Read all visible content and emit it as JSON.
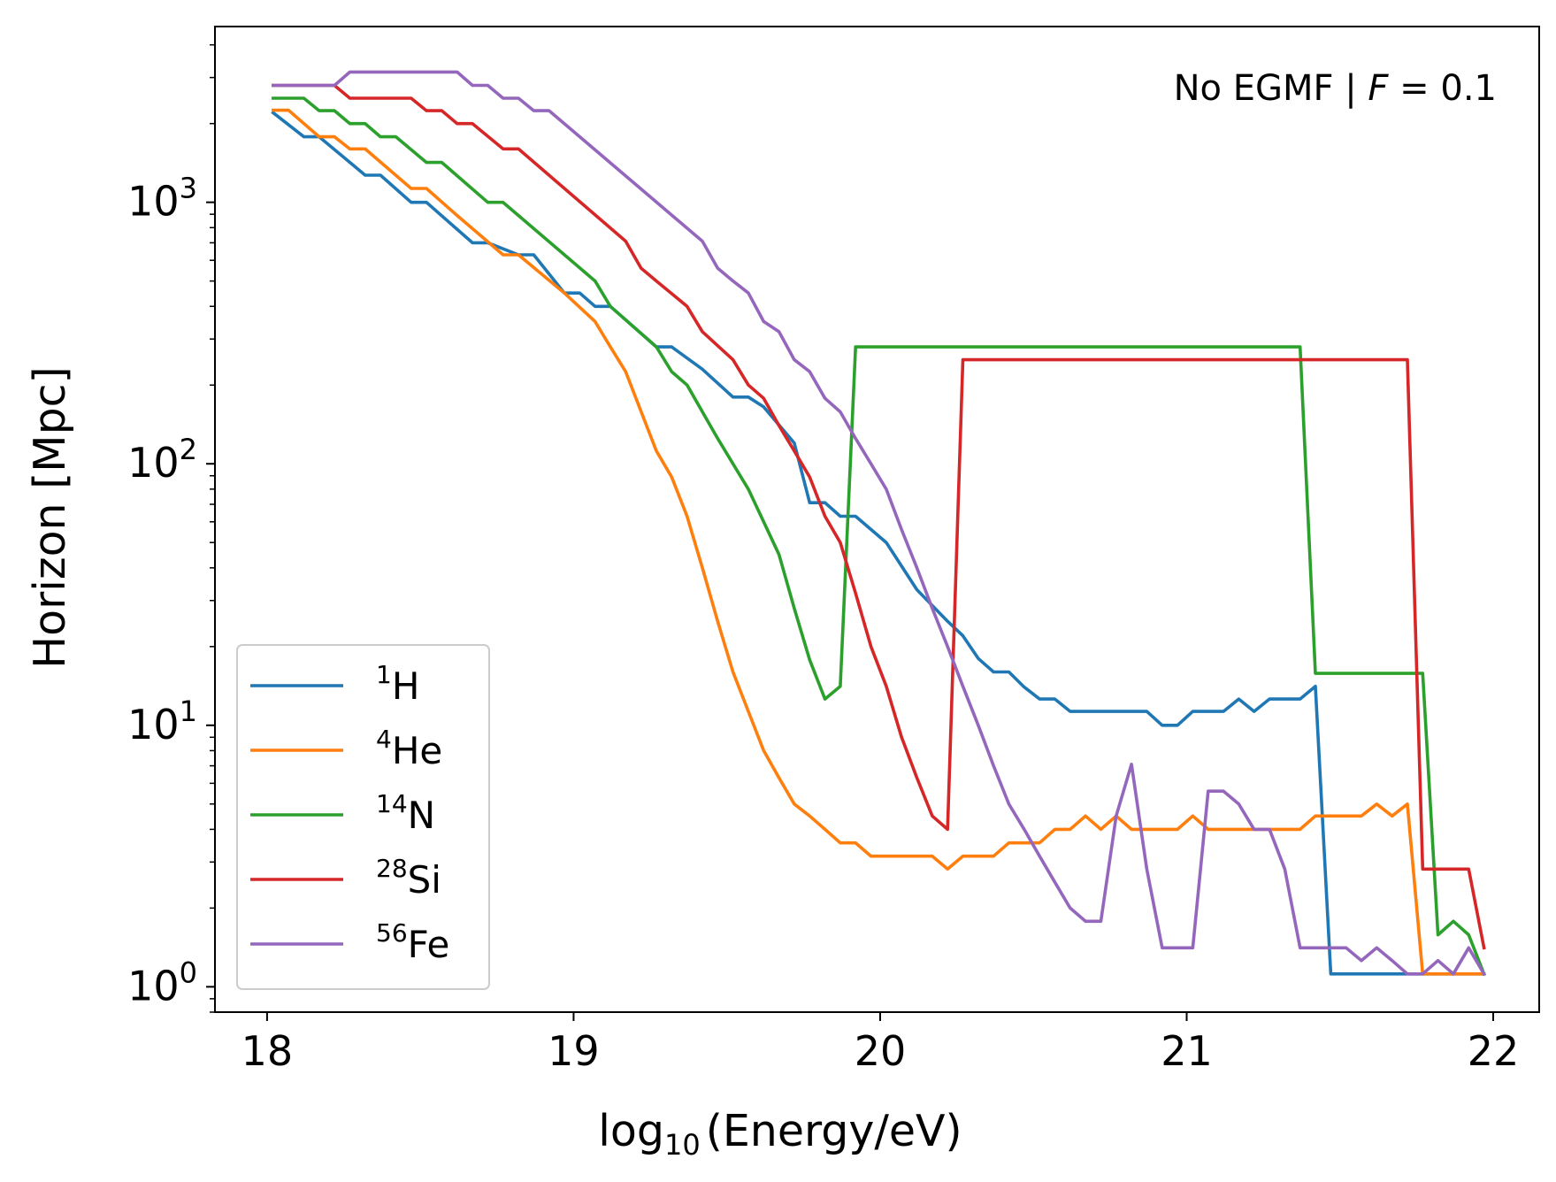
{
  "chart_data": {
    "type": "line",
    "xlabel": "log₁₀(Energy/eV)",
    "xlabel_parts": {
      "base": "log",
      "sub": "10",
      "rest": "(Energy/eV)"
    },
    "ylabel": "Horizon [Mpc]",
    "annotation": {
      "text_prefix": "No EGMF | ",
      "var": "F",
      "text_suffix": " = 0.1"
    },
    "xlim": [
      17.83,
      22.15
    ],
    "ylim": [
      0.8,
      4700
    ],
    "yscale": "log",
    "grid": false,
    "legend_placement": "lower-left",
    "x_ticks": [
      {
        "value": 18,
        "label": "18"
      },
      {
        "value": 19,
        "label": "19"
      },
      {
        "value": 20,
        "label": "20"
      },
      {
        "value": 21,
        "label": "21"
      },
      {
        "value": 22,
        "label": "22"
      }
    ],
    "y_ticks": [
      {
        "value": 1,
        "base": "10",
        "exp": "0"
      },
      {
        "value": 10,
        "base": "10",
        "exp": "1"
      },
      {
        "value": 100,
        "base": "10",
        "exp": "2"
      },
      {
        "value": 1000,
        "base": "10",
        "exp": "3"
      }
    ],
    "series": [
      {
        "name": "¹H",
        "name_sup": "1",
        "name_base": "H",
        "color": "#1f77b4",
        "points": [
          [
            18.02,
            2200
          ],
          [
            18.12,
            1780
          ],
          [
            18.17,
            1780
          ],
          [
            18.32,
            1270
          ],
          [
            18.37,
            1270
          ],
          [
            18.47,
            1000
          ],
          [
            18.52,
            1000
          ],
          [
            18.67,
            700
          ],
          [
            18.72,
            700
          ],
          [
            18.82,
            630
          ],
          [
            18.87,
            630
          ],
          [
            18.97,
            450
          ],
          [
            19.02,
            450
          ],
          [
            19.07,
            400
          ],
          [
            19.12,
            400
          ],
          [
            19.27,
            280
          ],
          [
            19.32,
            280
          ],
          [
            19.42,
            230
          ],
          [
            19.52,
            180
          ],
          [
            19.57,
            180
          ],
          [
            19.62,
            165
          ],
          [
            19.72,
            120
          ],
          [
            19.77,
            71
          ],
          [
            19.82,
            71
          ],
          [
            19.87,
            63
          ],
          [
            19.92,
            63
          ],
          [
            20.02,
            50
          ],
          [
            20.12,
            33
          ],
          [
            20.22,
            25
          ],
          [
            20.27,
            22
          ],
          [
            20.32,
            18
          ],
          [
            20.37,
            16
          ],
          [
            20.42,
            16
          ],
          [
            20.47,
            14
          ],
          [
            20.52,
            12.6
          ],
          [
            20.57,
            12.6
          ],
          [
            20.62,
            11.3
          ],
          [
            20.72,
            11.3
          ],
          [
            20.87,
            11.3
          ],
          [
            20.92,
            10
          ],
          [
            20.97,
            10
          ],
          [
            21.02,
            11.3
          ],
          [
            21.12,
            11.3
          ],
          [
            21.17,
            12.6
          ],
          [
            21.22,
            11.3
          ],
          [
            21.27,
            12.6
          ],
          [
            21.37,
            12.6
          ],
          [
            21.42,
            14.1
          ],
          [
            21.47,
            1.12
          ],
          [
            21.92,
            1.12
          ],
          [
            21.97,
            1.12
          ]
        ]
      },
      {
        "name": "⁴He",
        "name_sup": "4",
        "name_base": "He",
        "color": "#ff7f0e",
        "points": [
          [
            18.02,
            2250
          ],
          [
            18.07,
            2250
          ],
          [
            18.17,
            1780
          ],
          [
            18.22,
            1780
          ],
          [
            18.27,
            1600
          ],
          [
            18.32,
            1600
          ],
          [
            18.47,
            1130
          ],
          [
            18.52,
            1130
          ],
          [
            18.62,
            890
          ],
          [
            18.77,
            630
          ],
          [
            18.82,
            630
          ],
          [
            18.97,
            450
          ],
          [
            19.07,
            350
          ],
          [
            19.12,
            280
          ],
          [
            19.17,
            225
          ],
          [
            19.27,
            112
          ],
          [
            19.32,
            89
          ],
          [
            19.37,
            63
          ],
          [
            19.42,
            40
          ],
          [
            19.47,
            25
          ],
          [
            19.52,
            16
          ],
          [
            19.57,
            11.3
          ],
          [
            19.62,
            8
          ],
          [
            19.67,
            6.3
          ],
          [
            19.72,
            5
          ],
          [
            19.77,
            4.5
          ],
          [
            19.82,
            4
          ],
          [
            19.87,
            3.55
          ],
          [
            19.92,
            3.55
          ],
          [
            19.97,
            3.16
          ],
          [
            20.17,
            3.16
          ],
          [
            20.22,
            2.82
          ],
          [
            20.27,
            3.16
          ],
          [
            20.37,
            3.16
          ],
          [
            20.42,
            3.55
          ],
          [
            20.52,
            3.55
          ],
          [
            20.57,
            4
          ],
          [
            20.62,
            4
          ],
          [
            20.67,
            4.5
          ],
          [
            20.72,
            4
          ],
          [
            20.77,
            4.5
          ],
          [
            20.82,
            4
          ],
          [
            20.97,
            4
          ],
          [
            21.02,
            4.5
          ],
          [
            21.07,
            4
          ],
          [
            21.37,
            4
          ],
          [
            21.42,
            4.5
          ],
          [
            21.57,
            4.5
          ],
          [
            21.62,
            5
          ],
          [
            21.67,
            4.5
          ],
          [
            21.72,
            5
          ],
          [
            21.77,
            1.12
          ],
          [
            21.97,
            1.12
          ]
        ]
      },
      {
        "name": "¹⁴N",
        "name_sup": "14",
        "name_base": "N",
        "color": "#2ca02c",
        "points": [
          [
            18.02,
            2500
          ],
          [
            18.12,
            2500
          ],
          [
            18.17,
            2240
          ],
          [
            18.22,
            2240
          ],
          [
            18.27,
            2000
          ],
          [
            18.32,
            2000
          ],
          [
            18.37,
            1780
          ],
          [
            18.42,
            1780
          ],
          [
            18.52,
            1420
          ],
          [
            18.57,
            1420
          ],
          [
            18.72,
            1000
          ],
          [
            18.77,
            1000
          ],
          [
            19.07,
            500
          ],
          [
            19.12,
            400
          ],
          [
            19.27,
            280
          ],
          [
            19.32,
            225
          ],
          [
            19.37,
            200
          ],
          [
            19.47,
            125
          ],
          [
            19.57,
            80
          ],
          [
            19.67,
            45
          ],
          [
            19.72,
            28
          ],
          [
            19.77,
            17.8
          ],
          [
            19.82,
            12.6
          ],
          [
            19.87,
            14.1
          ],
          [
            19.92,
            280
          ],
          [
            21.37,
            280
          ],
          [
            21.42,
            15.8
          ],
          [
            21.77,
            15.8
          ],
          [
            21.82,
            1.58
          ],
          [
            21.87,
            1.78
          ],
          [
            21.92,
            1.58
          ],
          [
            21.97,
            1.12
          ]
        ]
      },
      {
        "name": "²⁸Si",
        "name_sup": "28",
        "name_base": "Si",
        "color": "#d62728",
        "points": [
          [
            18.02,
            2800
          ],
          [
            18.22,
            2800
          ],
          [
            18.27,
            2500
          ],
          [
            18.47,
            2500
          ],
          [
            18.52,
            2240
          ],
          [
            18.57,
            2240
          ],
          [
            18.62,
            2000
          ],
          [
            18.67,
            2000
          ],
          [
            18.77,
            1600
          ],
          [
            18.82,
            1600
          ],
          [
            19.17,
            710
          ],
          [
            19.22,
            560
          ],
          [
            19.27,
            500
          ],
          [
            19.37,
            400
          ],
          [
            19.42,
            320
          ],
          [
            19.52,
            250
          ],
          [
            19.57,
            200
          ],
          [
            19.62,
            178
          ],
          [
            19.67,
            140
          ],
          [
            19.72,
            112
          ],
          [
            19.77,
            89
          ],
          [
            19.82,
            63
          ],
          [
            19.87,
            50
          ],
          [
            19.92,
            32
          ],
          [
            19.97,
            20
          ],
          [
            20.02,
            14.1
          ],
          [
            20.07,
            9
          ],
          [
            20.12,
            6.3
          ],
          [
            20.17,
            4.5
          ],
          [
            20.22,
            4
          ],
          [
            20.27,
            250
          ],
          [
            21.72,
            250
          ],
          [
            21.77,
            2.82
          ],
          [
            21.92,
            2.82
          ],
          [
            21.97,
            1.41
          ]
        ]
      },
      {
        "name": "⁵⁶Fe",
        "name_sup": "56",
        "name_base": "Fe",
        "color": "#9467bd",
        "points": [
          [
            18.02,
            2800
          ],
          [
            18.22,
            2800
          ],
          [
            18.27,
            3150
          ],
          [
            18.62,
            3150
          ],
          [
            18.67,
            2800
          ],
          [
            18.72,
            2800
          ],
          [
            18.77,
            2500
          ],
          [
            18.82,
            2500
          ],
          [
            18.87,
            2240
          ],
          [
            18.92,
            2240
          ],
          [
            19.42,
            710
          ],
          [
            19.47,
            560
          ],
          [
            19.52,
            500
          ],
          [
            19.57,
            450
          ],
          [
            19.62,
            350
          ],
          [
            19.67,
            320
          ],
          [
            19.72,
            250
          ],
          [
            19.77,
            225
          ],
          [
            19.82,
            178
          ],
          [
            19.87,
            158
          ],
          [
            19.92,
            125
          ],
          [
            19.97,
            100
          ],
          [
            20.02,
            80
          ],
          [
            20.07,
            56
          ],
          [
            20.12,
            40
          ],
          [
            20.17,
            28
          ],
          [
            20.22,
            20
          ],
          [
            20.27,
            14.1
          ],
          [
            20.32,
            10
          ],
          [
            20.37,
            7
          ],
          [
            20.42,
            5
          ],
          [
            20.47,
            4
          ],
          [
            20.52,
            3.16
          ],
          [
            20.57,
            2.51
          ],
          [
            20.62,
            2
          ],
          [
            20.67,
            1.78
          ],
          [
            20.72,
            1.78
          ],
          [
            20.77,
            4.5
          ],
          [
            20.82,
            7.1
          ],
          [
            20.87,
            2.82
          ],
          [
            20.92,
            1.41
          ],
          [
            20.97,
            1.41
          ],
          [
            21.02,
            1.41
          ],
          [
            21.07,
            5.6
          ],
          [
            21.12,
            5.6
          ],
          [
            21.17,
            5
          ],
          [
            21.22,
            4
          ],
          [
            21.27,
            4
          ],
          [
            21.32,
            2.82
          ],
          [
            21.37,
            1.41
          ],
          [
            21.47,
            1.41
          ],
          [
            21.52,
            1.41
          ],
          [
            21.57,
            1.26
          ],
          [
            21.62,
            1.41
          ],
          [
            21.67,
            1.26
          ],
          [
            21.72,
            1.12
          ],
          [
            21.77,
            1.12
          ],
          [
            21.82,
            1.26
          ],
          [
            21.87,
            1.12
          ],
          [
            21.92,
            1.41
          ],
          [
            21.97,
            1.12
          ]
        ]
      }
    ]
  }
}
